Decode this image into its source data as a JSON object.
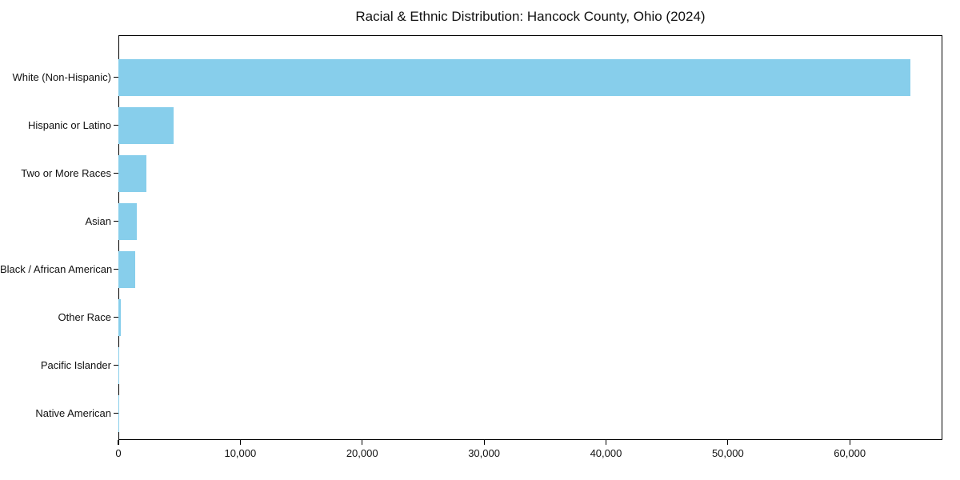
{
  "chart_data": {
    "type": "bar",
    "orientation": "horizontal",
    "title": "Racial & Ethnic Distribution: Hancock County, Ohio (2024)",
    "categories": [
      "White (Non-Hispanic)",
      "Hispanic or Latino",
      "Two or More Races",
      "Asian",
      "Black / African American",
      "Other Race",
      "Pacific Islander",
      "Native American"
    ],
    "values": [
      65000,
      4500,
      2300,
      1500,
      1400,
      200,
      50,
      40
    ],
    "xlabel": "",
    "ylabel": "",
    "xlim": [
      0,
      67600
    ],
    "xticks": [
      0,
      10000,
      20000,
      30000,
      40000,
      50000,
      60000
    ],
    "bar_color": "#87CEEB",
    "grid": false,
    "legend_position": "none"
  }
}
